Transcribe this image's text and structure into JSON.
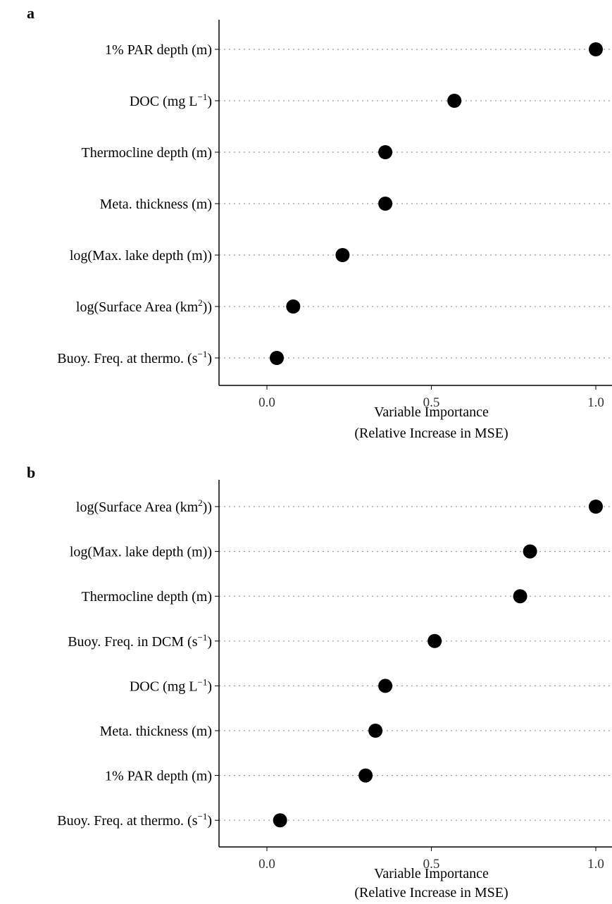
{
  "chart_data": [
    {
      "type": "scatter",
      "panel": "a",
      "categories": [
        {
          "label": "1% PAR depth (m)",
          "sup": "",
          "tail": ""
        },
        {
          "label": "DOC (mg L",
          "sup": "−1",
          "tail": ")"
        },
        {
          "label": "Thermocline depth (m)",
          "sup": "",
          "tail": ""
        },
        {
          "label": "Meta. thickness (m)",
          "sup": "",
          "tail": ""
        },
        {
          "label": "log(Max. lake depth (m))",
          "sup": "",
          "tail": ""
        },
        {
          "label": "log(Surface Area (km",
          "sup": "2",
          "tail": "))"
        },
        {
          "label": "Buoy. Freq. at thermo. (s",
          "sup": "−1",
          "tail": ")"
        }
      ],
      "values": [
        1.0,
        0.57,
        0.36,
        0.36,
        0.23,
        0.08,
        0.03
      ],
      "xlabel": [
        "Variable Importance",
        "(Relative Increase in MSE)"
      ],
      "xticks": [
        "0.0",
        "0.5",
        "1.0"
      ],
      "xlim": [
        -0.14,
        1.04
      ],
      "grid": "dotted horizontal"
    },
    {
      "type": "scatter",
      "panel": "b",
      "categories": [
        {
          "label": "log(Surface Area (km",
          "sup": "2",
          "tail": "))"
        },
        {
          "label": "log(Max. lake depth (m))",
          "sup": "",
          "tail": ""
        },
        {
          "label": "Thermocline depth (m)",
          "sup": "",
          "tail": ""
        },
        {
          "label": "Buoy. Freq. in DCM (s",
          "sup": "−1",
          "tail": ")"
        },
        {
          "label": "DOC (mg L",
          "sup": "−1",
          "tail": ")"
        },
        {
          "label": "Meta. thickness (m)",
          "sup": "",
          "tail": ""
        },
        {
          "label": "1% PAR depth (m)",
          "sup": "",
          "tail": ""
        },
        {
          "label": "Buoy. Freq. at thermo. (s",
          "sup": "−1",
          "tail": ")"
        }
      ],
      "values": [
        1.0,
        0.8,
        0.77,
        0.51,
        0.36,
        0.33,
        0.3,
        0.04
      ],
      "xlabel": [
        "Variable Importance",
        "(Relative Increase in MSE)"
      ],
      "xticks": [
        "0.0",
        "0.5",
        "1.0"
      ],
      "xlim": [
        -0.14,
        1.04
      ],
      "grid": "dotted horizontal"
    }
  ],
  "colors": {
    "point": "#000000",
    "grid": "#999999",
    "axis": "#000000",
    "tick_text": "#333333"
  }
}
